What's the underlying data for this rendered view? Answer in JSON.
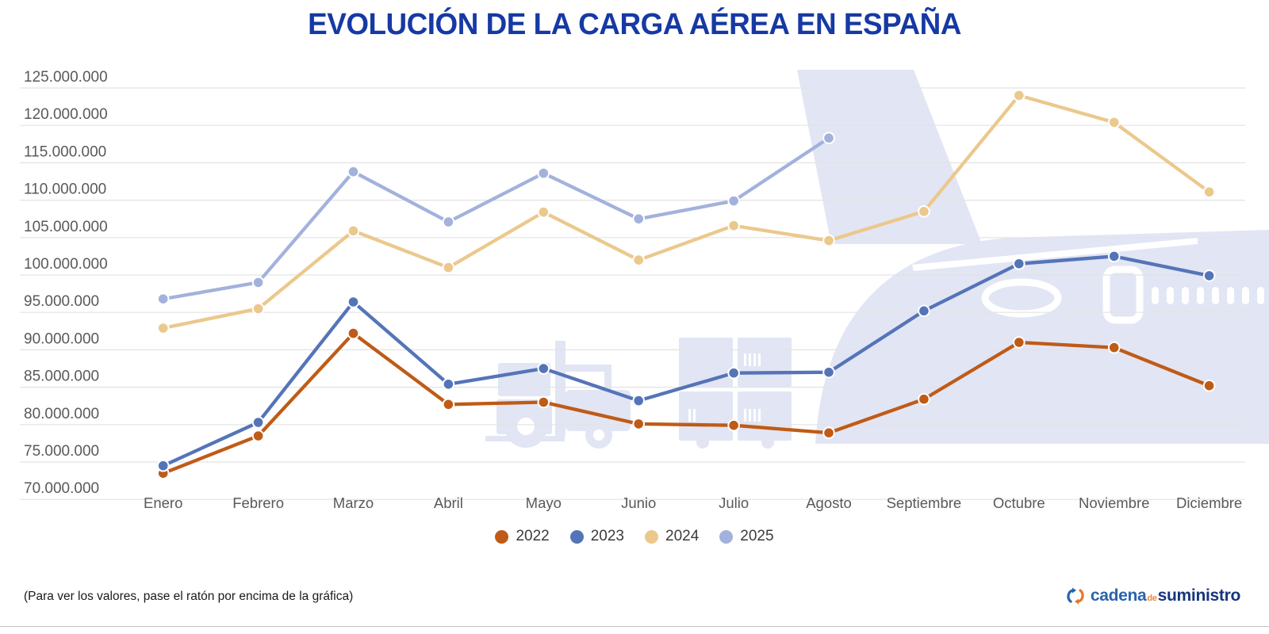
{
  "title": "EVOLUCIÓN DE LA CARGA AÉREA EN ESPAÑA",
  "footer": {
    "note": "(Para ver los valores, pase el ratón por encima de la gráfica)",
    "logo": {
      "part1": "cadena",
      "part2": "de",
      "part3": "suministro"
    }
  },
  "colors": {
    "title": "#1639A4",
    "gridline": "#e3e3e3",
    "tick_label": "#595959",
    "watermark": "#E2E5F4"
  },
  "chart_data": {
    "type": "line",
    "title": "EVOLUCIÓN DE LA CARGA AÉREA EN ESPAÑA",
    "categories": [
      "Enero",
      "Febrero",
      "Marzo",
      "Abril",
      "Mayo",
      "Junio",
      "Julio",
      "Agosto",
      "Septiembre",
      "Octubre",
      "Noviembre",
      "Diciembre"
    ],
    "series": [
      {
        "name": "2022",
        "color": "#BF5B17",
        "values": [
          73500000,
          78500000,
          92200000,
          82700000,
          83000000,
          80100000,
          79900000,
          78900000,
          83400000,
          91000000,
          90300000,
          85200000
        ]
      },
      {
        "name": "2023",
        "color": "#5574B8",
        "values": [
          74500000,
          80300000,
          96400000,
          85400000,
          87500000,
          83200000,
          86900000,
          87000000,
          95200000,
          101500000,
          102500000,
          99900000
        ]
      },
      {
        "name": "2024",
        "color": "#EBC88C",
        "values": [
          92900000,
          95500000,
          105900000,
          101000000,
          108400000,
          102000000,
          106600000,
          104600000,
          108500000,
          124000000,
          120400000,
          111100000
        ]
      },
      {
        "name": "2025",
        "color": "#A3B2DC",
        "values": [
          96800000,
          99000000,
          113800000,
          107100000,
          113600000,
          107500000,
          109900000,
          118300000
        ]
      }
    ],
    "ylim": [
      70000000,
      125000000
    ],
    "ytick_step": 5000000,
    "ytick_labels": [
      "125.000.000",
      "120.000.000",
      "115.000.000",
      "110.000.000",
      "105.000.000",
      "100.000.000",
      "95.000.000",
      "90.000.000",
      "85.000.000",
      "80.000.000",
      "75.000.000",
      "70.000.000"
    ],
    "xlabel": "",
    "ylabel": "",
    "grid": true,
    "legend_position": "bottom",
    "tooltip_hint": "(Para ver los valores, pase el ratón por encima de la gráfica)"
  }
}
